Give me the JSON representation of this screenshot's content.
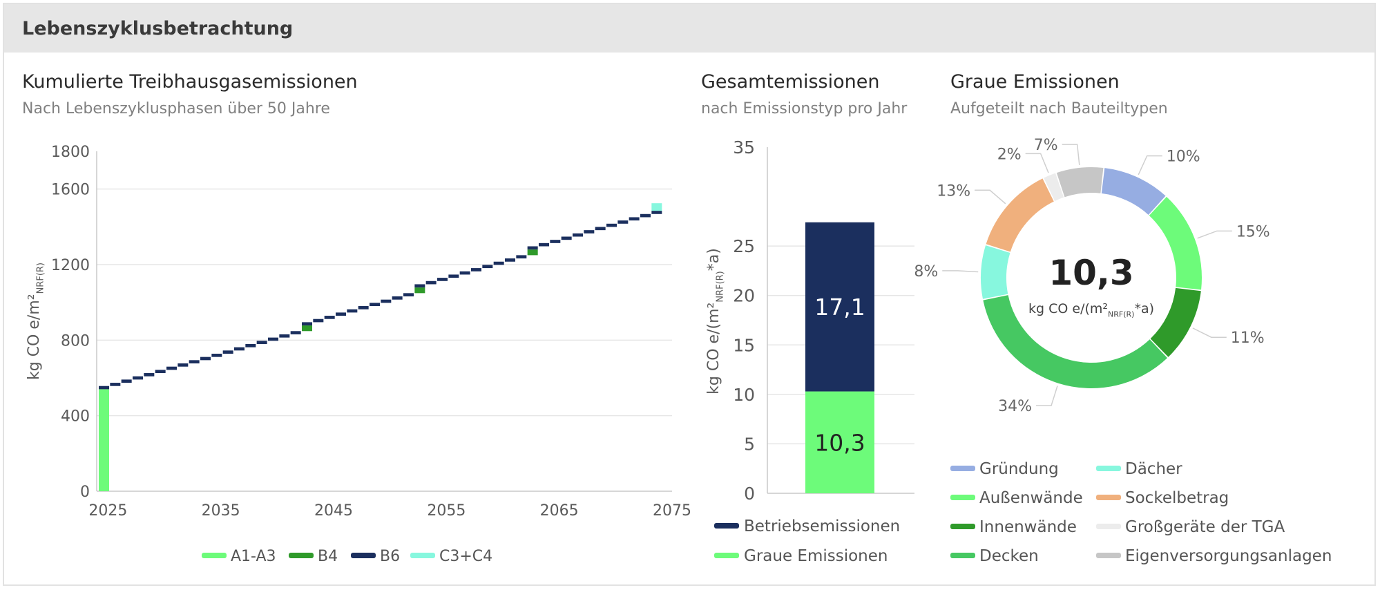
{
  "header": {
    "title": "Lebenszyklusbetrachtung"
  },
  "colors": {
    "a1a3": "#6dfb7a",
    "b4": "#2f9a2a",
    "b6": "#1b2f5e",
    "c3c4": "#87f7de",
    "grid": "#e6e6e6",
    "axis": "#c8c8c8"
  },
  "chart_data": [
    {
      "id": "cumulative",
      "type": "bar",
      "title": "Kumulierte Treibhausgasemissionen",
      "subtitle": "Nach Lebenszyklusphasen über 50 Jahre",
      "ylabel": {
        "main": "kg CO e/m²",
        "sub": "NRF(R)"
      },
      "ylim": [
        0,
        1800
      ],
      "yticks": [
        "0",
        "400",
        "800",
        "1200",
        "1600",
        "1800"
      ],
      "xlim": [
        2024,
        2075
      ],
      "xticks": [
        "2025",
        "2035",
        "2045",
        "2055",
        "2065",
        "2075"
      ],
      "start_year": 2024,
      "years": 50,
      "a1a3": 540,
      "b6_per_year": 17.1,
      "b4_years": [
        2042,
        2052,
        2062
      ],
      "b4_value": 30,
      "c3c4": 40,
      "legend": [
        {
          "key": "a1a3",
          "label": "A1-A3"
        },
        {
          "key": "b4",
          "label": "B4"
        },
        {
          "key": "b6",
          "label": "B6"
        },
        {
          "key": "c3c4",
          "label": "C3+C4"
        }
      ]
    },
    {
      "id": "total",
      "type": "bar",
      "title": "Gesamtemissionen",
      "subtitle": "nach Emissionstyp pro Jahr",
      "ylabel": {
        "main": "kg CO e/(m²",
        "sub": "NRF(R)",
        "end": "*a)"
      },
      "ylim": [
        0,
        35
      ],
      "yticks": [
        "0",
        "5",
        "10",
        "15",
        "20",
        "25",
        "35"
      ],
      "series": [
        {
          "name": "Graue Emissionen",
          "value": 10.3,
          "label": "10,3",
          "color": "#6dfb7a"
        },
        {
          "name": "Betriebsemissionen",
          "value": 17.1,
          "label": "17,1",
          "color": "#1b2f5e"
        }
      ],
      "legend": [
        {
          "label": "Betriebsemissionen",
          "color": "#1b2f5e"
        },
        {
          "label": "Graue Emissionen",
          "color": "#6dfb7a"
        }
      ]
    },
    {
      "id": "grey",
      "type": "pie",
      "title": "Graue Emissionen",
      "subtitle": "Aufgeteilt nach Bauteiltypen",
      "center_value": "10,3",
      "center_unit": {
        "main": "kg CO e/(m²",
        "sub": "NRF(R)",
        "end": "*a)"
      },
      "slices": [
        {
          "name": "Dächer",
          "value": 8,
          "label": "8%",
          "color": "#87f7de"
        },
        {
          "name": "Sockelbetrag",
          "value": 13,
          "label": "13%",
          "color": "#f0b07d"
        },
        {
          "name": "Großgeräte der TGA",
          "value": 2,
          "label": "2%",
          "color": "#ececec"
        },
        {
          "name": "Eigenversorgungsanlagen",
          "value": 7,
          "label": "7%",
          "color": "#c6c6c6"
        },
        {
          "name": "Gründung",
          "value": 10,
          "label": "10%",
          "color": "#96ade2"
        },
        {
          "name": "Außenwände",
          "value": 15,
          "label": "15%",
          "color": "#6dfb7a"
        },
        {
          "name": "Innenwände",
          "value": 11,
          "label": "11%",
          "color": "#2f9a2a"
        },
        {
          "name": "Decken",
          "value": 34,
          "label": "34%",
          "color": "#46c862"
        }
      ],
      "legend": [
        {
          "label": "Gründung",
          "color": "#96ade2"
        },
        {
          "label": "Dächer",
          "color": "#87f7de"
        },
        {
          "label": "Außenwände",
          "color": "#6dfb7a"
        },
        {
          "label": "Sockelbetrag",
          "color": "#f0b07d"
        },
        {
          "label": "Innenwände",
          "color": "#2f9a2a"
        },
        {
          "label": "Großgeräte der TGA",
          "color": "#ececec"
        },
        {
          "label": "Decken",
          "color": "#46c862"
        },
        {
          "label": "Eigenversorgungsanlagen",
          "color": "#c6c6c6"
        }
      ]
    }
  ]
}
